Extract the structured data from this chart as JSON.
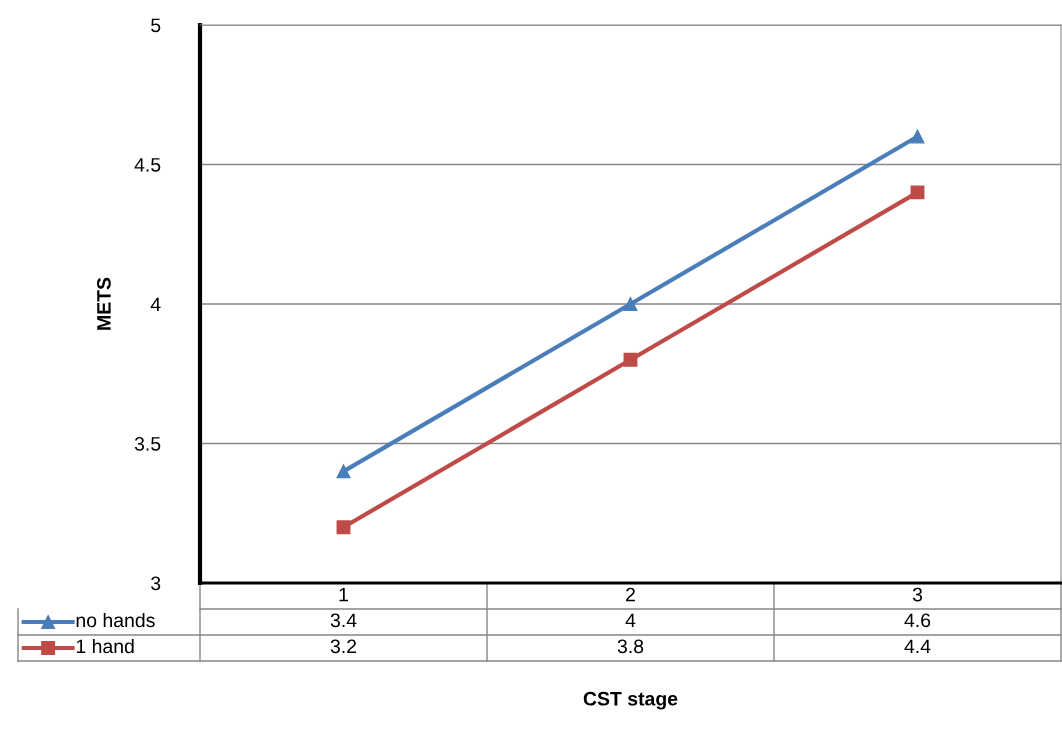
{
  "chart_data": {
    "type": "line",
    "xlabel": "CST stage",
    "ylabel": "METS",
    "categories": [
      "1",
      "2",
      "3"
    ],
    "series": [
      {
        "name": "no hands",
        "color": "#4a7ebb",
        "marker": "triangle",
        "values": [
          3.4,
          4,
          4.6
        ]
      },
      {
        "name": "1 hand",
        "color": "#be4b48",
        "marker": "square",
        "values": [
          3.2,
          3.8,
          4.4
        ]
      }
    ],
    "ylim": [
      3,
      5
    ],
    "yticks": [
      3,
      3.5,
      4,
      4.5,
      5
    ],
    "grid": "y",
    "legend": "bottom",
    "data_labels": true
  }
}
